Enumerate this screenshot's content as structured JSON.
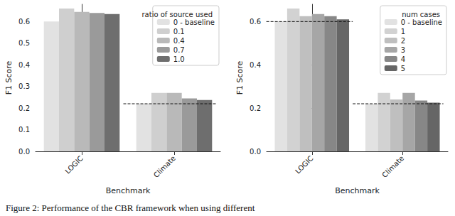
{
  "caption": "Figure 2: Performance of the CBR framework when using different",
  "chart_data": [
    {
      "type": "bar",
      "x_label": "Benchmark",
      "y_label": "F1 Score",
      "categories": [
        "LOGIC",
        "Climate"
      ],
      "legend": "upper right",
      "legend_title": "ratio of source used",
      "series": [
        {
          "name": "0 - baseline",
          "color": "#e2e2e2",
          "values": [
            0.6,
            0.22
          ]
        },
        {
          "name": "0.1",
          "color": "#cfcfcf",
          "values": [
            0.66,
            0.27
          ]
        },
        {
          "name": "0.4",
          "color": "#b9b9b9",
          "values": [
            0.645,
            0.27
          ]
        },
        {
          "name": "0.7",
          "color": "#9a9a9a",
          "values": [
            0.64,
            0.245
          ]
        },
        {
          "name": "1.0",
          "color": "#6e6e6e",
          "values": [
            0.635,
            0.237
          ]
        }
      ],
      "reference_lines": [
        {
          "category": "Climate",
          "value": 0.22
        }
      ],
      "ylim": [
        0,
        0.68
      ],
      "yticks": [
        {
          "value": 0,
          "label": "0.0"
        },
        {
          "value": 0.1,
          "label": "0.1"
        },
        {
          "value": 0.2,
          "label": "0.2"
        },
        {
          "value": 0.3,
          "label": "0.3"
        },
        {
          "value": 0.4,
          "label": "0.4"
        },
        {
          "value": 0.5,
          "label": "0.5"
        },
        {
          "value": 0.6,
          "label": "0.6"
        }
      ],
      "grid": false
    },
    {
      "type": "bar",
      "x_label": "Benchmark",
      "y_label": "F1 Score",
      "categories": [
        "LOGIC",
        "Climate"
      ],
      "legend": "upper right",
      "legend_title": "num cases",
      "series": [
        {
          "name": "0 - baseline",
          "color": "#e2e2e2",
          "values": [
            0.6,
            0.22
          ]
        },
        {
          "name": "1",
          "color": "#d2d2d2",
          "values": [
            0.66,
            0.27
          ]
        },
        {
          "name": "2",
          "color": "#bfbfbf",
          "values": [
            0.625,
            0.24
          ]
        },
        {
          "name": "3",
          "color": "#a6a6a6",
          "values": [
            0.635,
            0.27
          ]
        },
        {
          "name": "4",
          "color": "#878787",
          "values": [
            0.625,
            0.235
          ]
        },
        {
          "name": "5",
          "color": "#666666",
          "values": [
            0.61,
            0.225
          ]
        }
      ],
      "reference_lines": [
        {
          "category": "LOGIC",
          "value": 0.6
        },
        {
          "category": "Climate",
          "value": 0.22
        }
      ],
      "ylim": [
        0,
        0.68
      ],
      "yticks": [
        {
          "value": 0,
          "label": "0.0"
        },
        {
          "value": 0.2,
          "label": "0.2"
        },
        {
          "value": 0.4,
          "label": "0.4"
        },
        {
          "value": 0.6,
          "label": "0.6"
        }
      ],
      "grid": false
    }
  ]
}
